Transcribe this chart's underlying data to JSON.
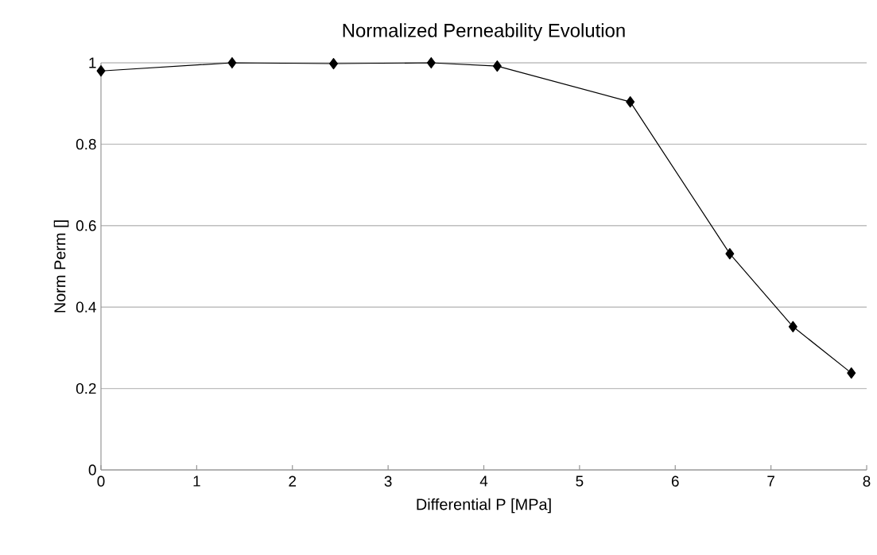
{
  "chart_data": {
    "type": "line",
    "title": "Normalized Perneability Evolution",
    "xlabel": "Differential P [MPa]",
    "ylabel": "Norm Perm []",
    "x": [
      0,
      1.37,
      2.43,
      3.45,
      4.14,
      5.53,
      6.57,
      7.23,
      7.84
    ],
    "series": [
      {
        "color": "#000000",
        "values": [
          0.98,
          1.0,
          0.998,
          1.0,
          0.992,
          0.904,
          0.531,
          0.352,
          0.238
        ]
      }
    ],
    "xlim": [
      0,
      8
    ],
    "ylim": [
      0,
      1
    ],
    "xticks": [
      0,
      1,
      2,
      3,
      4,
      5,
      6,
      7,
      8
    ],
    "yticks": [
      0,
      0.2,
      0.4,
      0.6,
      0.8,
      1
    ],
    "grid": "y",
    "marker": "diamond",
    "line_style": "solid"
  }
}
